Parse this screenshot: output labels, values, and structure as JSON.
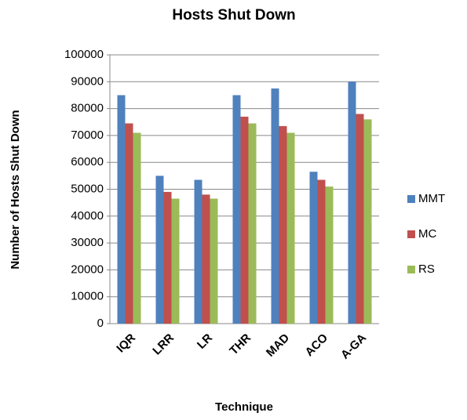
{
  "chart_data": {
    "type": "bar",
    "title": "Hosts Shut Down",
    "x_label": "Technique",
    "y_label": "Number of Hosts Shut Down",
    "categories": [
      "IQR",
      "LRR",
      "LR",
      "THR",
      "MAD",
      "ACO",
      "A-GA"
    ],
    "series": [
      {
        "name": "MMT",
        "color": "#4f81bd",
        "values": [
          85000,
          55000,
          53500,
          85000,
          87500,
          56500,
          90000
        ]
      },
      {
        "name": "MC",
        "color": "#c0504d",
        "values": [
          74500,
          49000,
          48000,
          77000,
          73500,
          53500,
          78000
        ]
      },
      {
        "name": "RS",
        "color": "#9bbb59",
        "values": [
          71000,
          46500,
          46500,
          74500,
          71000,
          51000,
          76000
        ]
      }
    ],
    "ylim": [
      0,
      100000
    ],
    "yticks": [
      0,
      10000,
      20000,
      30000,
      40000,
      50000,
      60000,
      70000,
      80000,
      90000,
      100000
    ],
    "grid": true,
    "legend": "right"
  }
}
